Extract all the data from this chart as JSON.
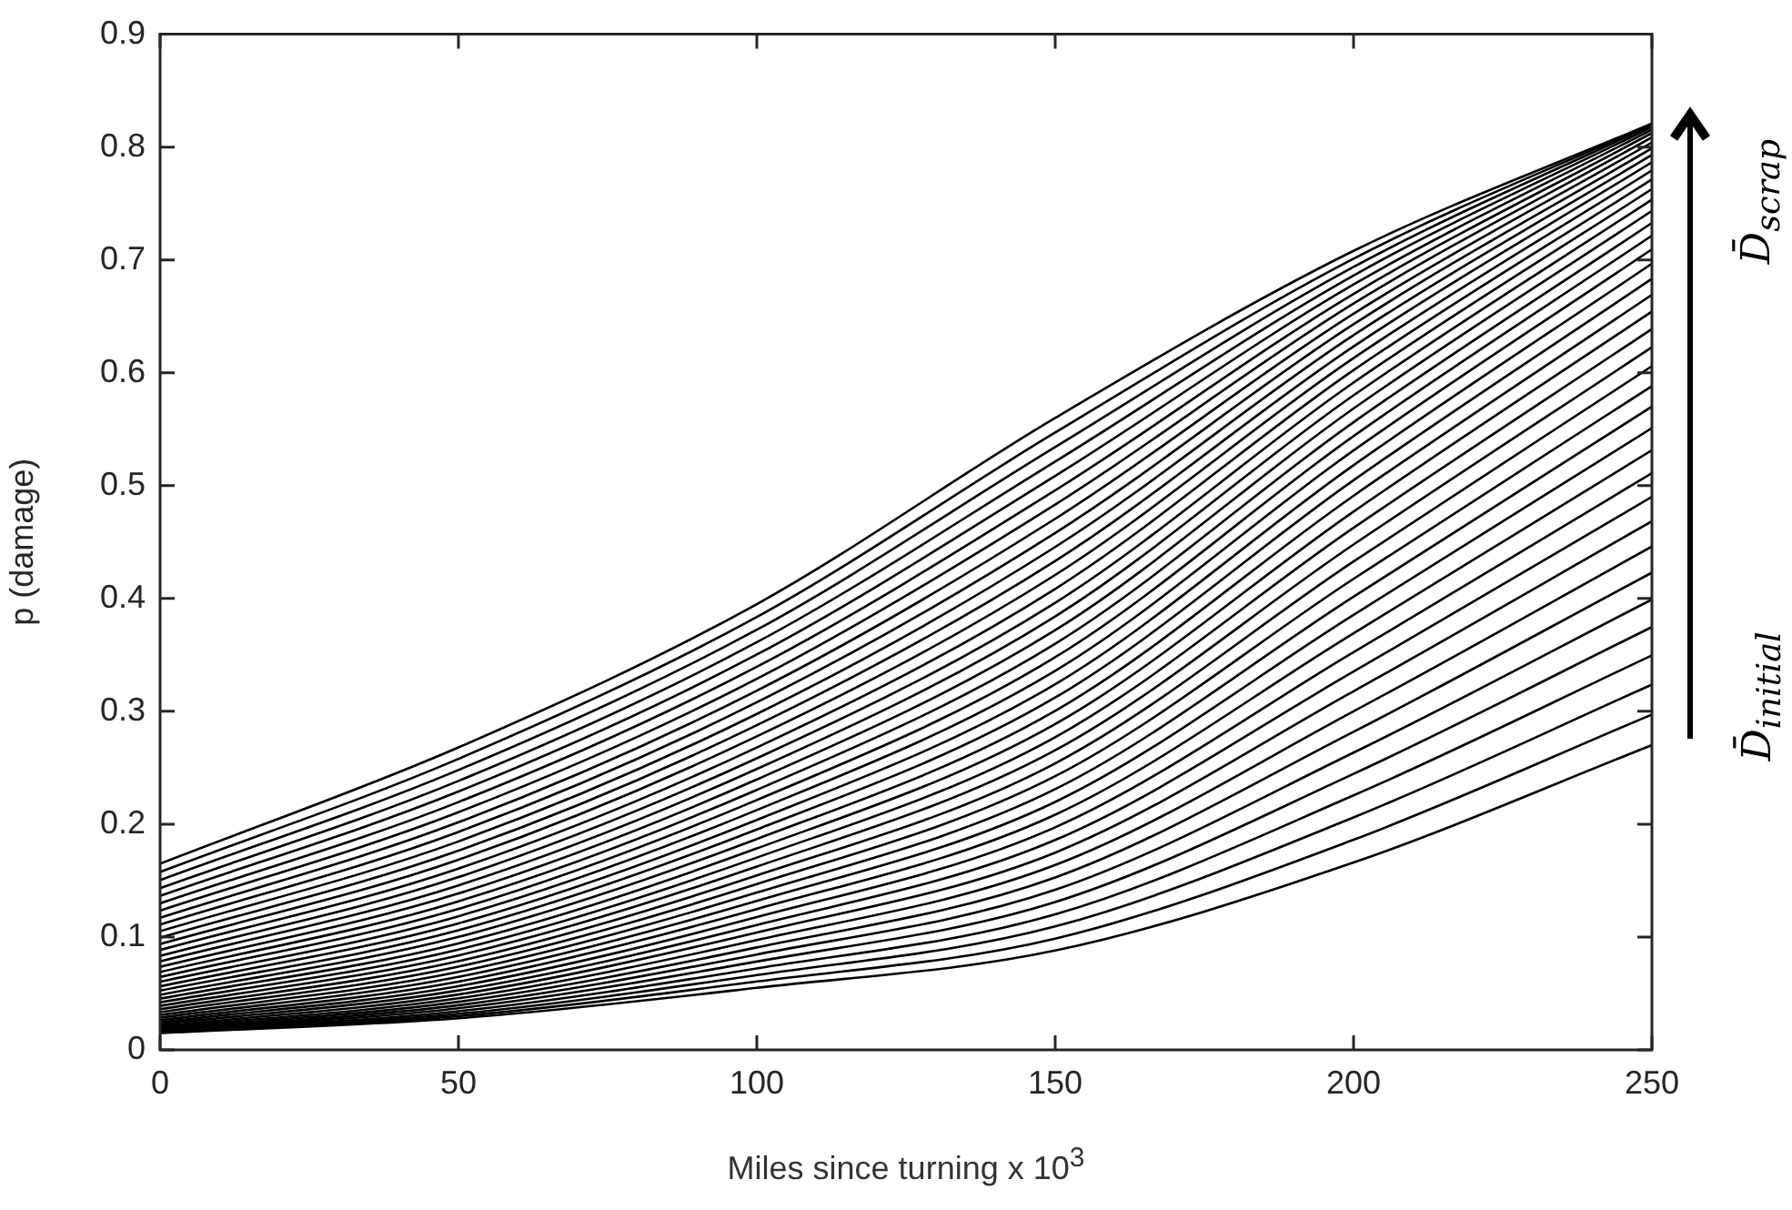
{
  "chart_data": {
    "type": "line",
    "xlabel": "Miles since turning x 10$^{3}$",
    "ylabel": "p (damage)",
    "annotations": [
      "D̄$_{initial}$",
      "D̄$_{scrap}$"
    ],
    "x": [
      0,
      50,
      100,
      150,
      200,
      250
    ],
    "xlim": [
      0,
      250
    ],
    "xticks": [
      0,
      50,
      100,
      150,
      200,
      250
    ],
    "ylim": [
      0,
      0.9
    ],
    "yticks": [
      0,
      0.1,
      0.2,
      0.3,
      0.4,
      0.5,
      0.6,
      0.7,
      0.8,
      0.9
    ],
    "grid": false,
    "legend": false,
    "marker": "none",
    "line_style": "solid",
    "series": [
      {
        "color": "#000000",
        "values": [
          0.015,
          0.028,
          0.055,
          0.088,
          0.166,
          0.27
        ]
      },
      {
        "color": "#000000",
        "values": [
          0.0151,
          0.0299,
          0.0606,
          0.0986,
          0.1862,
          0.2972
        ]
      },
      {
        "color": "#000000",
        "values": [
          0.0154,
          0.032,
          0.0663,
          0.1094,
          0.206,
          0.3237
        ]
      },
      {
        "color": "#000000",
        "values": [
          0.0158,
          0.0343,
          0.0722,
          0.1201,
          0.2255,
          0.3496
        ]
      },
      {
        "color": "#000000",
        "values": [
          0.0165,
          0.0369,
          0.0783,
          0.131,
          0.2446,
          0.3747
        ]
      },
      {
        "color": "#000000",
        "values": [
          0.0173,
          0.0396,
          0.0845,
          0.1418,
          0.2634,
          0.3991
        ]
      },
      {
        "color": "#000000",
        "values": [
          0.0184,
          0.0426,
          0.0908,
          0.1528,
          0.2819,
          0.4229
        ]
      },
      {
        "color": "#000000",
        "values": [
          0.0196,
          0.0457,
          0.0973,
          0.1638,
          0.3,
          0.446
        ]
      },
      {
        "color": "#000000",
        "values": [
          0.021,
          0.0491,
          0.104,
          0.1748,
          0.3178,
          0.4684
        ]
      },
      {
        "color": "#000000",
        "values": [
          0.0226,
          0.0527,
          0.1107,
          0.186,
          0.3352,
          0.4901
        ]
      },
      {
        "color": "#000000",
        "values": [
          0.0244,
          0.0565,
          0.1177,
          0.1972,
          0.3523,
          0.5111
        ]
      },
      {
        "color": "#000000",
        "values": [
          0.0263,
          0.0605,
          0.1248,
          0.2084,
          0.3691,
          0.5314
        ]
      },
      {
        "color": "#000000",
        "values": [
          0.0285,
          0.0647,
          0.132,
          0.2197,
          0.3855,
          0.551
        ]
      },
      {
        "color": "#000000",
        "values": [
          0.0308,
          0.0691,
          0.1394,
          0.231,
          0.4016,
          0.57
        ]
      },
      {
        "color": "#000000",
        "values": [
          0.0334,
          0.0738,
          0.1469,
          0.2425,
          0.4174,
          0.5882
        ]
      },
      {
        "color": "#000000",
        "values": [
          0.0361,
          0.0786,
          0.1546,
          0.2539,
          0.4328,
          0.6058
        ]
      },
      {
        "color": "#000000",
        "values": [
          0.039,
          0.0837,
          0.1624,
          0.2655,
          0.4478,
          0.6226
        ]
      },
      {
        "color": "#000000",
        "values": [
          0.0421,
          0.0889,
          0.1704,
          0.2771,
          0.4626,
          0.6388
        ]
      },
      {
        "color": "#000000",
        "values": [
          0.0454,
          0.0944,
          0.1785,
          0.2887,
          0.477,
          0.6543
        ]
      },
      {
        "color": "#000000",
        "values": [
          0.0488,
          0.1001,
          0.1868,
          0.3004,
          0.491,
          0.6691
        ]
      },
      {
        "color": "#000000",
        "values": [
          0.0525,
          0.106,
          0.1953,
          0.3122,
          0.5048,
          0.6833
        ]
      },
      {
        "color": "#000000",
        "values": [
          0.0563,
          0.1121,
          0.2038,
          0.324,
          0.5181,
          0.6967
        ]
      },
      {
        "color": "#000000",
        "values": [
          0.0604,
          0.1184,
          0.2125,
          0.3359,
          0.5312,
          0.7094
        ]
      },
      {
        "color": "#000000",
        "values": [
          0.0646,
          0.1249,
          0.2214,
          0.3479,
          0.5439,
          0.7215
        ]
      },
      {
        "color": "#000000",
        "values": [
          0.069,
          0.1317,
          0.2304,
          0.3599,
          0.5562,
          0.7328
        ]
      },
      {
        "color": "#000000",
        "values": [
          0.0736,
          0.1386,
          0.2396,
          0.3719,
          0.5683,
          0.7435
        ]
      },
      {
        "color": "#000000",
        "values": [
          0.0784,
          0.1458,
          0.2489,
          0.3841,
          0.58,
          0.7535
        ]
      },
      {
        "color": "#000000",
        "values": [
          0.0833,
          0.1531,
          0.2584,
          0.3962,
          0.5913,
          0.7628
        ]
      },
      {
        "color": "#000000",
        "values": [
          0.0885,
          0.1607,
          0.268,
          0.4085,
          0.6023,
          0.7714
        ]
      },
      {
        "color": "#000000",
        "values": [
          0.0938,
          0.1685,
          0.2778,
          0.4208,
          0.613,
          0.7793
        ]
      },
      {
        "color": "#000000",
        "values": [
          0.0994,
          0.1765,
          0.2877,
          0.4332,
          0.6233,
          0.7866
        ]
      },
      {
        "color": "#000000",
        "values": [
          0.1051,
          0.1847,
          0.2977,
          0.4456,
          0.6333,
          0.7931
        ]
      },
      {
        "color": "#000000",
        "values": [
          0.111,
          0.1931,
          0.308,
          0.458,
          0.643,
          0.799
        ]
      },
      {
        "color": "#000000",
        "values": [
          0.1171,
          0.2017,
          0.3183,
          0.4706,
          0.6523,
          0.8041
        ]
      },
      {
        "color": "#000000",
        "values": [
          0.1234,
          0.2106,
          0.3288,
          0.4832,
          0.6613,
          0.8086
        ]
      },
      {
        "color": "#000000",
        "values": [
          0.1298,
          0.2196,
          0.3395,
          0.4958,
          0.6699,
          0.8124
        ]
      },
      {
        "color": "#000000",
        "values": [
          0.1365,
          0.2289,
          0.3503,
          0.5086,
          0.6782,
          0.8155
        ]
      },
      {
        "color": "#000000",
        "values": [
          0.1433,
          0.2383,
          0.3612,
          0.5213,
          0.6862,
          0.8179
        ]
      },
      {
        "color": "#000000",
        "values": [
          0.1504,
          0.248,
          0.3723,
          0.5342,
          0.6938,
          0.8196
        ]
      },
      {
        "color": "#000000",
        "values": [
          0.1576,
          0.2579,
          0.3836,
          0.547,
          0.7011,
          0.8206
        ]
      },
      {
        "color": "#000000",
        "values": [
          0.165,
          0.268,
          0.395,
          0.56,
          0.708,
          0.821
        ]
      }
    ]
  }
}
